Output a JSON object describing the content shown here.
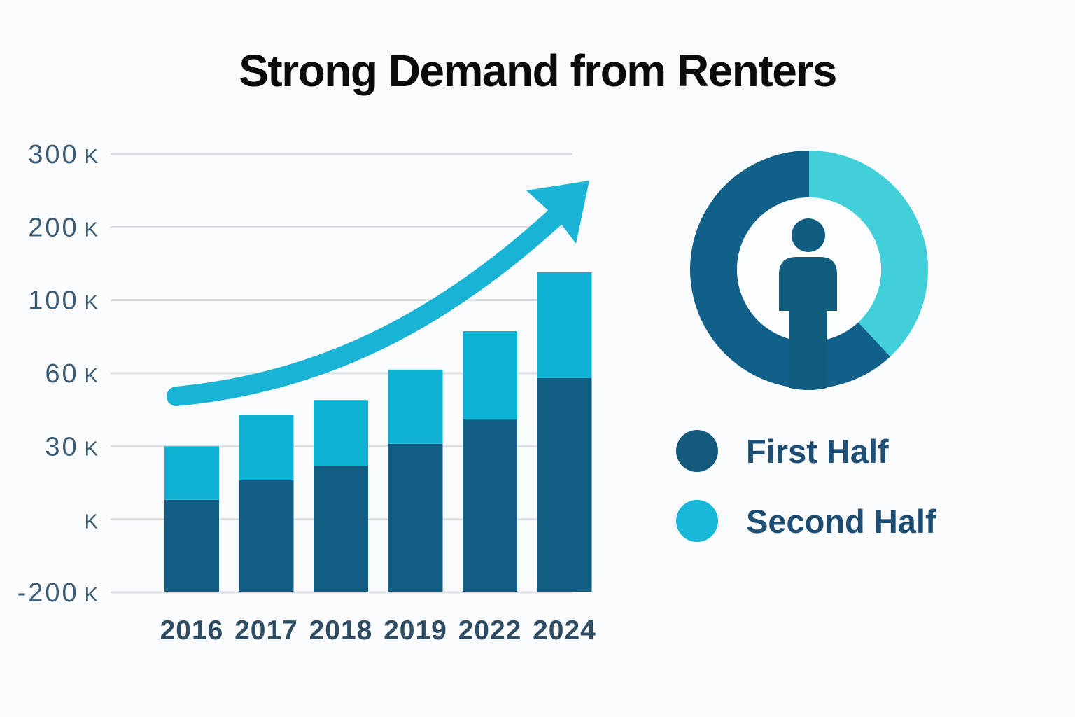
{
  "title": "Strong Demand from Renters",
  "legend": {
    "items": [
      {
        "label": "First Half",
        "color": "#135a7d"
      },
      {
        "label": "Second Half",
        "color": "#17b8d8"
      }
    ]
  },
  "donut": {
    "description": "renter donut chart with person icon in center",
    "segments": [
      {
        "name": "Second Half",
        "color": "#41cfd9",
        "start_deg": 0,
        "end_deg": 137,
        "percent": 38
      },
      {
        "name": "First Half",
        "color": "#10608a",
        "start_deg": 137,
        "end_deg": 360,
        "percent": 62
      }
    ],
    "icon": "person-icon"
  },
  "chart_data": {
    "type": "bar",
    "stacked": true,
    "title": "Strong Demand from Renters",
    "categories": [
      "2016",
      "2017",
      "2018",
      "2019",
      "2022",
      "2024"
    ],
    "series": [
      {
        "name": "First Half",
        "color": "#125d83",
        "values": [
          8,
          16,
          22,
          31,
          41,
          58
        ]
      },
      {
        "name": "Second Half",
        "color": "#0fb1d3",
        "values": [
          22,
          27,
          27,
          31,
          42,
          80
        ]
      }
    ],
    "stack_totals": [
      30,
      43,
      49,
      62,
      83,
      138
    ],
    "unit": "K",
    "xlabel": "",
    "ylabel": "",
    "grid": true,
    "legend_position": "right",
    "y_axis": {
      "tick_labels": [
        "300 K",
        "200 K",
        "100 K",
        "60 K",
        "30 K",
        "K",
        "-200 K"
      ],
      "tick_values": [
        300,
        200,
        100,
        60,
        30,
        0,
        -200
      ],
      "note": "decorative non-linear axis, ticks equally spaced; bars rise from the bottom -200 K gridline"
    },
    "annotations": [
      "upward curved growth arrow across bars"
    ]
  },
  "colors": {
    "background": "#fafbfc",
    "gridline": "#dbe0e6",
    "axis_text": "#3b5a73",
    "year_text": "#2e4d64",
    "arrow": "#19b4d5",
    "inner_circle": "#fcfdfe",
    "person": "#115d80",
    "title_text": "#0b0b0b"
  }
}
